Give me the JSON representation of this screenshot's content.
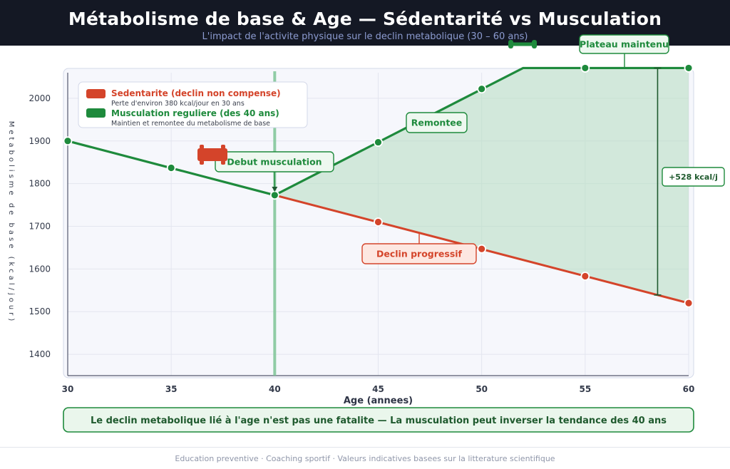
{
  "header": {
    "title": "Métabolisme de base & Age  —  Sédentarité vs Musculation",
    "subtitle": "L'impact de l'activite physique sur le declin metabolique  (30 – 60 ans)"
  },
  "chart_data": {
    "type": "line",
    "xlabel": "Age (annees)",
    "ylabel": "Metabolisme de base (kcal/jour)",
    "xlim": [
      30,
      60
    ],
    "ylim": [
      1350,
      2060
    ],
    "x_ticks": [
      30,
      35,
      40,
      45,
      50,
      55,
      60
    ],
    "y_ticks": [
      1400,
      1500,
      1600,
      1700,
      1800,
      1900,
      2000
    ],
    "grid": true,
    "legend_position": "top-left",
    "series": [
      {
        "name": "Sedentarite (declin non compense)",
        "description": "Perte d'environ 380 kcal/jour en 30 ans",
        "color": "#d4442a",
        "x": [
          30,
          40,
          60
        ],
        "values": [
          1900,
          1773,
          1520
        ],
        "markers_x": [
          45,
          50,
          55,
          60
        ],
        "markers_y": [
          1710,
          1647,
          1583,
          1520
        ]
      },
      {
        "name": "Musculation reguliere (des 40 ans)",
        "description": "Maintien et remontee du metabolisme de base",
        "color": "#1e8a3c",
        "x": [
          30,
          40,
          52,
          60
        ],
        "values": [
          1900,
          1773,
          2071,
          2071
        ],
        "markers_x": [
          30,
          35,
          40,
          45,
          50,
          55,
          60
        ],
        "markers_y": [
          1900,
          1837,
          1773,
          1897,
          2022,
          2071,
          2071
        ]
      }
    ],
    "vertical_line_x": 40,
    "annotations": {
      "start": "Debut musculation",
      "rise": "Remontee",
      "plateau": "Plateau maintenu",
      "decline": "Declin progressif",
      "gap": "+528 kcal/j",
      "gap_x": 58.5
    },
    "conclusion": "Le declin metabolique lié à l'age n'est pas une fatalite  —  La musculation peut inverser la tendance des 40 ans"
  },
  "footer": {
    "text": "Education preventive  ·  Coaching sportif  ·  Valeurs indicatives basees sur la litterature scientifique"
  }
}
